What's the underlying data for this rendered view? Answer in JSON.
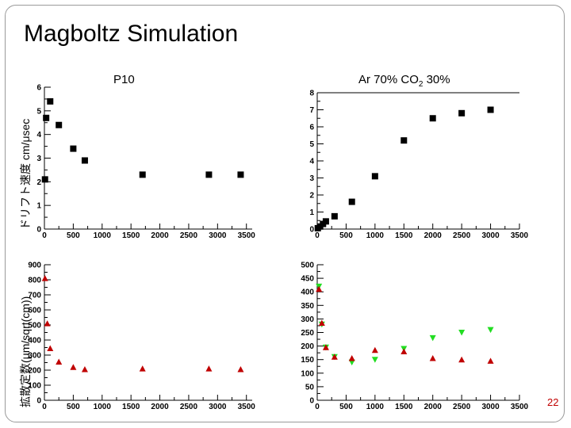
{
  "slide": {
    "title": "Magboltz Simulation",
    "page_number": "22"
  },
  "labels": {
    "drift_ylabel": "ドリフト速度 cm/μsec",
    "diff_ylabel": "拡散定数(μm/sqrt(cm))",
    "p10_title": "P10",
    "ar_title_main": "Ar 70% CO",
    "ar_title_sub": "2",
    "ar_title_rest": " 30%"
  },
  "colors": {
    "black": "#000000",
    "red": "#c00000",
    "green": "#22dd22"
  },
  "chart_data": [
    {
      "id": "drift-p10",
      "type": "scatter",
      "marker": "square",
      "xlim": [
        0,
        3600
      ],
      "ylim": [
        0,
        6
      ],
      "xticks": [
        0,
        500,
        1000,
        1500,
        2000,
        2500,
        3000,
        3500
      ],
      "yticks": [
        0,
        1,
        2,
        3,
        4,
        5,
        6
      ],
      "series": [
        {
          "color": "#000000",
          "marker": "square",
          "points": [
            [
              10,
              2.1
            ],
            [
              30,
              4.7
            ],
            [
              100,
              5.4
            ],
            [
              250,
              4.4
            ],
            [
              500,
              3.4
            ],
            [
              700,
              2.9
            ],
            [
              1700,
              2.3
            ],
            [
              2850,
              2.3
            ],
            [
              3400,
              2.3
            ]
          ]
        }
      ]
    },
    {
      "id": "drift-ar",
      "type": "scatter",
      "marker": "square",
      "xlim": [
        0,
        3500
      ],
      "ylim": [
        0,
        8
      ],
      "xticks": [
        0,
        500,
        1000,
        1500,
        2000,
        2500,
        3000,
        3500
      ],
      "yticks": [
        0,
        1,
        2,
        3,
        4,
        5,
        6,
        7,
        8
      ],
      "series": [
        {
          "color": "#000000",
          "marker": "square",
          "points": [
            [
              10,
              0.05
            ],
            [
              50,
              0.15
            ],
            [
              100,
              0.3
            ],
            [
              150,
              0.45
            ],
            [
              300,
              0.75
            ],
            [
              600,
              1.6
            ],
            [
              1000,
              3.1
            ],
            [
              1500,
              5.2
            ],
            [
              2000,
              6.5
            ],
            [
              2500,
              6.8
            ],
            [
              3000,
              7.0
            ]
          ]
        }
      ]
    },
    {
      "id": "diff-p10",
      "type": "scatter",
      "marker": "triangle-up",
      "xlim": [
        0,
        3600
      ],
      "ylim": [
        0,
        900
      ],
      "xticks": [
        0,
        500,
        1000,
        1500,
        2000,
        2500,
        3000,
        3500
      ],
      "yticks": [
        0,
        100,
        200,
        300,
        400,
        500,
        600,
        700,
        800,
        900
      ],
      "series": [
        {
          "color": "#c00000",
          "marker": "triangle-up",
          "points": [
            [
              10,
              810
            ],
            [
              50,
              510
            ],
            [
              100,
              345
            ],
            [
              250,
              255
            ],
            [
              500,
              220
            ],
            [
              700,
              205
            ],
            [
              1700,
              210
            ],
            [
              2850,
              210
            ],
            [
              3400,
              205
            ]
          ]
        }
      ]
    },
    {
      "id": "diff-ar",
      "type": "scatter",
      "xlim": [
        0,
        3500
      ],
      "ylim": [
        0,
        500
      ],
      "xticks": [
        0,
        500,
        1000,
        1500,
        2000,
        2500,
        3000,
        3500
      ],
      "yticks": [
        0,
        50,
        100,
        150,
        200,
        250,
        300,
        350,
        400,
        450,
        500
      ],
      "series": [
        {
          "color": "#22dd22",
          "marker": "triangle-down",
          "points": [
            [
              30,
              420
            ],
            [
              80,
              280
            ],
            [
              150,
              195
            ],
            [
              300,
              160
            ],
            [
              600,
              140
            ],
            [
              1000,
              150
            ],
            [
              1500,
              190
            ],
            [
              2000,
              230
            ],
            [
              2500,
              250
            ],
            [
              3000,
              260
            ]
          ]
        },
        {
          "color": "#c00000",
          "marker": "triangle-up",
          "points": [
            [
              30,
              410
            ],
            [
              80,
              285
            ],
            [
              150,
              195
            ],
            [
              300,
              160
            ],
            [
              600,
              155
            ],
            [
              1000,
              185
            ],
            [
              1500,
              180
            ],
            [
              2000,
              155
            ],
            [
              2500,
              150
            ],
            [
              3000,
              145
            ]
          ]
        }
      ]
    }
  ]
}
